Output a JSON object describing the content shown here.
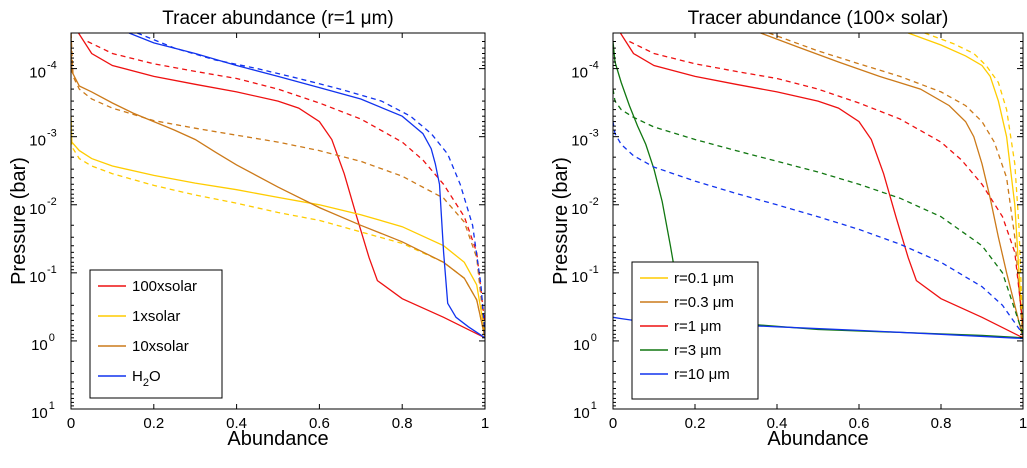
{
  "chart_data": [
    {
      "type": "line",
      "title": "Tracer abundance (r=1 μm)",
      "xlabel": "Abundance",
      "ylabel": "Pressure (bar)",
      "xlim": [
        0,
        1
      ],
      "ylim": [
        3e-05,
        10
      ],
      "yscale": "log",
      "y_reversed": true,
      "x_ticks": [
        "0",
        "0.2",
        "0.4",
        "0.6",
        "0.8",
        "1"
      ],
      "y_ticks": [
        {
          "base": "10",
          "exp": "-4",
          "value": 0.0001
        },
        {
          "base": "10",
          "exp": "-3",
          "value": 0.001
        },
        {
          "base": "10",
          "exp": "-2",
          "value": 0.01
        },
        {
          "base": "10",
          "exp": "-1",
          "value": 0.1
        },
        {
          "base": "10",
          "exp": "0",
          "value": 1
        },
        {
          "base": "10",
          "exp": "1",
          "value": 10
        }
      ],
      "legend_position": "bottom-left",
      "series": [
        {
          "name": "100xsolar",
          "color": "#ee1111",
          "dashed": false,
          "x": [
            0.018,
            0.05,
            0.1,
            0.2,
            0.3,
            0.4,
            0.5,
            0.55,
            0.6,
            0.63,
            0.66,
            0.69,
            0.72,
            0.74,
            0.8,
            0.9,
            1.0
          ],
          "y": [
            3e-05,
            6e-05,
            9e-05,
            0.00013,
            0.00017,
            0.00022,
            0.0003,
            0.00038,
            0.0006,
            0.0011,
            0.0035,
            0.015,
            0.06,
            0.13,
            0.24,
            0.45,
            0.9
          ]
        },
        {
          "name": "",
          "color": "#ee1111",
          "dashed": true,
          "x": [
            0.04,
            0.1,
            0.2,
            0.3,
            0.4,
            0.5,
            0.6,
            0.7,
            0.8,
            0.85,
            0.9,
            0.95,
            0.98,
            1.0
          ],
          "y": [
            4e-05,
            6e-05,
            8.5e-05,
            0.00011,
            0.00014,
            0.0002,
            0.00032,
            0.00055,
            0.0012,
            0.0022,
            0.005,
            0.015,
            0.05,
            0.6
          ]
        },
        {
          "name": "1xsolar",
          "color": "#ffcc00",
          "dashed": false,
          "x": [
            0.0,
            0.002,
            0.02,
            0.05,
            0.1,
            0.2,
            0.3,
            0.4,
            0.5,
            0.6,
            0.7,
            0.8,
            0.9,
            0.95,
            0.98,
            1.0
          ],
          "y": [
            0.0005,
            0.0012,
            0.0016,
            0.0021,
            0.0027,
            0.0037,
            0.0048,
            0.006,
            0.0078,
            0.01,
            0.014,
            0.021,
            0.04,
            0.07,
            0.15,
            0.8
          ]
        },
        {
          "name": "",
          "color": "#ffcc00",
          "dashed": true,
          "x": [
            0.0,
            0.002,
            0.02,
            0.05,
            0.1,
            0.2,
            0.3,
            0.4,
            0.5,
            0.6,
            0.7,
            0.8,
            0.9,
            0.95,
            0.98,
            1.0
          ],
          "y": [
            0.0006,
            0.0014,
            0.0021,
            0.0027,
            0.0035,
            0.0052,
            0.0072,
            0.0095,
            0.013,
            0.017,
            0.025,
            0.037,
            0.07,
            0.12,
            0.25,
            0.9
          ]
        },
        {
          "name": "10xsolar",
          "color": "#cc7a1a",
          "dashed": false,
          "x": [
            0.0,
            0.002,
            0.02,
            0.05,
            0.1,
            0.15,
            0.2,
            0.25,
            0.3,
            0.35,
            0.4,
            0.5,
            0.6,
            0.7,
            0.8,
            0.9,
            0.95,
            0.98,
            1.0
          ],
          "y": [
            3e-05,
            0.00011,
            0.00018,
            0.00022,
            0.00032,
            0.00045,
            0.0006,
            0.0008,
            0.0011,
            0.0017,
            0.0026,
            0.0055,
            0.011,
            0.02,
            0.035,
            0.07,
            0.12,
            0.25,
            0.9
          ]
        },
        {
          "name": "",
          "color": "#cc7a1a",
          "dashed": true,
          "x": [
            0.0,
            0.005,
            0.02,
            0.05,
            0.1,
            0.2,
            0.3,
            0.4,
            0.5,
            0.6,
            0.7,
            0.8,
            0.9,
            0.95,
            0.98,
            1.0
          ],
          "y": [
            3e-05,
            0.00013,
            0.0002,
            0.00028,
            0.00038,
            0.00058,
            0.00075,
            0.00095,
            0.0012,
            0.0016,
            0.0023,
            0.0038,
            0.008,
            0.018,
            0.06,
            0.8
          ]
        },
        {
          "name": "H2O",
          "color": "#1133ee",
          "dashed": false,
          "x": [
            0.14,
            0.2,
            0.3,
            0.4,
            0.5,
            0.6,
            0.7,
            0.8,
            0.85,
            0.87,
            0.88,
            0.89,
            0.9,
            0.91,
            0.93,
            0.96,
            1.0
          ],
          "y": [
            3e-05,
            4.2e-05,
            6e-05,
            9e-05,
            0.00013,
            0.00019,
            0.00028,
            0.0005,
            0.0009,
            0.0015,
            0.0025,
            0.005,
            0.05,
            0.28,
            0.45,
            0.62,
            0.9
          ]
        },
        {
          "name": "",
          "color": "#1133ee",
          "dashed": true,
          "x": [
            0.16,
            0.25,
            0.35,
            0.45,
            0.55,
            0.65,
            0.75,
            0.82,
            0.87,
            0.91,
            0.94,
            0.97,
            0.99,
            1.0
          ],
          "y": [
            3e-05,
            5e-05,
            7.5e-05,
            0.0001,
            0.00014,
            0.0002,
            0.0003,
            0.0005,
            0.0009,
            0.0018,
            0.005,
            0.02,
            0.15,
            0.8
          ]
        }
      ],
      "legend": [
        {
          "label": "100xsolar",
          "color": "#ee1111"
        },
        {
          "label": "1xsolar",
          "color": "#ffcc00"
        },
        {
          "label": "10xsolar",
          "color": "#cc7a1a"
        },
        {
          "label_main": "H",
          "label_sub": "2",
          "label_tail": "O",
          "color": "#1133ee"
        }
      ]
    },
    {
      "type": "line",
      "title": "Tracer abundance (100× solar)",
      "xlabel": "Abundance",
      "ylabel": "Pressure (bar)",
      "xlim": [
        0,
        1
      ],
      "ylim": [
        3e-05,
        10
      ],
      "yscale": "log",
      "y_reversed": true,
      "x_ticks": [
        "0",
        "0.2",
        "0.4",
        "0.6",
        "0.8",
        "1"
      ],
      "y_ticks": [
        {
          "base": "10",
          "exp": "-4",
          "value": 0.0001
        },
        {
          "base": "10",
          "exp": "-3",
          "value": 0.001
        },
        {
          "base": "10",
          "exp": "-2",
          "value": 0.01
        },
        {
          "base": "10",
          "exp": "-1",
          "value": 0.1
        },
        {
          "base": "10",
          "exp": "0",
          "value": 1
        },
        {
          "base": "10",
          "exp": "1",
          "value": 10
        }
      ],
      "legend_position": "bottom-left",
      "series": [
        {
          "name": "r=0.1 μm",
          "color": "#ffcc00",
          "dashed": false,
          "x": [
            0.72,
            0.8,
            0.86,
            0.9,
            0.92,
            0.94,
            0.96,
            0.98,
            1.0
          ],
          "y": [
            3e-05,
            4.5e-05,
            6.5e-05,
            9e-05,
            0.00013,
            0.0003,
            0.001,
            0.01,
            0.9
          ]
        },
        {
          "name": "",
          "color": "#ffcc00",
          "dashed": true,
          "x": [
            0.76,
            0.83,
            0.88,
            0.91,
            0.94,
            0.96,
            0.98,
            0.99,
            1.0
          ],
          "y": [
            3e-05,
            4.3e-05,
            6e-05,
            9e-05,
            0.00016,
            0.0004,
            0.0025,
            0.02,
            0.9
          ]
        },
        {
          "name": "r=0.3 μm",
          "color": "#cc7a1a",
          "dashed": false,
          "x": [
            0.36,
            0.45,
            0.55,
            0.65,
            0.75,
            0.82,
            0.86,
            0.88,
            0.9,
            0.92,
            0.94,
            0.96,
            0.98,
            1.0
          ],
          "y": [
            3e-05,
            4.8e-05,
            8e-05,
            0.00013,
            0.0002,
            0.00035,
            0.0006,
            0.001,
            0.0025,
            0.008,
            0.03,
            0.1,
            0.3,
            0.9
          ]
        },
        {
          "name": "",
          "color": "#cc7a1a",
          "dashed": true,
          "x": [
            0.38,
            0.5,
            0.6,
            0.7,
            0.8,
            0.86,
            0.9,
            0.93,
            0.96,
            0.98,
            1.0
          ],
          "y": [
            3e-05,
            5.5e-05,
            8.5e-05,
            0.00013,
            0.00022,
            0.00035,
            0.0006,
            0.0012,
            0.004,
            0.03,
            0.9
          ]
        },
        {
          "name": "r=1 μm",
          "color": "#ee1111",
          "dashed": false,
          "x": [
            0.018,
            0.05,
            0.1,
            0.2,
            0.3,
            0.4,
            0.5,
            0.55,
            0.6,
            0.63,
            0.66,
            0.69,
            0.72,
            0.74,
            0.8,
            0.9,
            1.0
          ],
          "y": [
            3e-05,
            6e-05,
            9e-05,
            0.00013,
            0.00017,
            0.00022,
            0.0003,
            0.00038,
            0.0006,
            0.0011,
            0.0035,
            0.015,
            0.06,
            0.13,
            0.24,
            0.45,
            0.9
          ]
        },
        {
          "name": "",
          "color": "#ee1111",
          "dashed": true,
          "x": [
            0.04,
            0.1,
            0.2,
            0.3,
            0.4,
            0.5,
            0.6,
            0.7,
            0.8,
            0.85,
            0.9,
            0.95,
            0.98,
            1.0
          ],
          "y": [
            4e-05,
            6e-05,
            8.5e-05,
            0.00011,
            0.00014,
            0.0002,
            0.00032,
            0.00055,
            0.0012,
            0.0022,
            0.005,
            0.015,
            0.05,
            0.6
          ]
        },
        {
          "name": "r=3 μm",
          "color": "#117711",
          "dashed": false,
          "x": [
            0.0,
            0.005,
            0.02,
            0.04,
            0.06,
            0.08,
            0.1,
            0.12,
            0.14,
            0.16,
            0.2,
            0.3,
            0.5,
            0.7,
            0.9,
            1.0
          ],
          "y": [
            4e-05,
            8e-05,
            0.00016,
            0.00035,
            0.0007,
            0.0013,
            0.003,
            0.009,
            0.04,
            0.2,
            0.45,
            0.55,
            0.68,
            0.75,
            0.83,
            0.9
          ]
        },
        {
          "name": "",
          "color": "#117711",
          "dashed": true,
          "x": [
            0.0,
            0.005,
            0.02,
            0.05,
            0.1,
            0.2,
            0.3,
            0.4,
            0.5,
            0.6,
            0.7,
            0.8,
            0.9,
            0.95,
            1.0
          ],
          "y": [
            0.0002,
            0.0003,
            0.0004,
            0.00052,
            0.00072,
            0.0011,
            0.0016,
            0.0023,
            0.0033,
            0.005,
            0.008,
            0.015,
            0.04,
            0.1,
            0.8
          ]
        },
        {
          "name": "r=10 μm",
          "color": "#1133ee",
          "dashed": false,
          "x": [
            0.0,
            0.02,
            0.05,
            0.2,
            0.4,
            0.6,
            0.8,
            1.0
          ],
          "y": [
            0.45,
            0.47,
            0.5,
            0.55,
            0.62,
            0.7,
            0.8,
            0.92
          ]
        },
        {
          "name": "",
          "color": "#1133ee",
          "dashed": true,
          "x": [
            0.0,
            0.005,
            0.02,
            0.05,
            0.1,
            0.2,
            0.3,
            0.4,
            0.5,
            0.6,
            0.7,
            0.8,
            0.9,
            0.95,
            1.0
          ],
          "y": [
            0.0006,
            0.0009,
            0.0013,
            0.0019,
            0.0028,
            0.0045,
            0.0068,
            0.01,
            0.015,
            0.023,
            0.038,
            0.07,
            0.16,
            0.3,
            0.8
          ]
        }
      ],
      "legend": [
        {
          "label": "r=0.1 μm",
          "color": "#ffcc00"
        },
        {
          "label": "r=0.3 μm",
          "color": "#cc7a1a"
        },
        {
          "label": "r=1 μm",
          "color": "#ee1111"
        },
        {
          "label": "r=3 μm",
          "color": "#117711"
        },
        {
          "label": "r=10 μm",
          "color": "#1133ee"
        }
      ]
    }
  ]
}
